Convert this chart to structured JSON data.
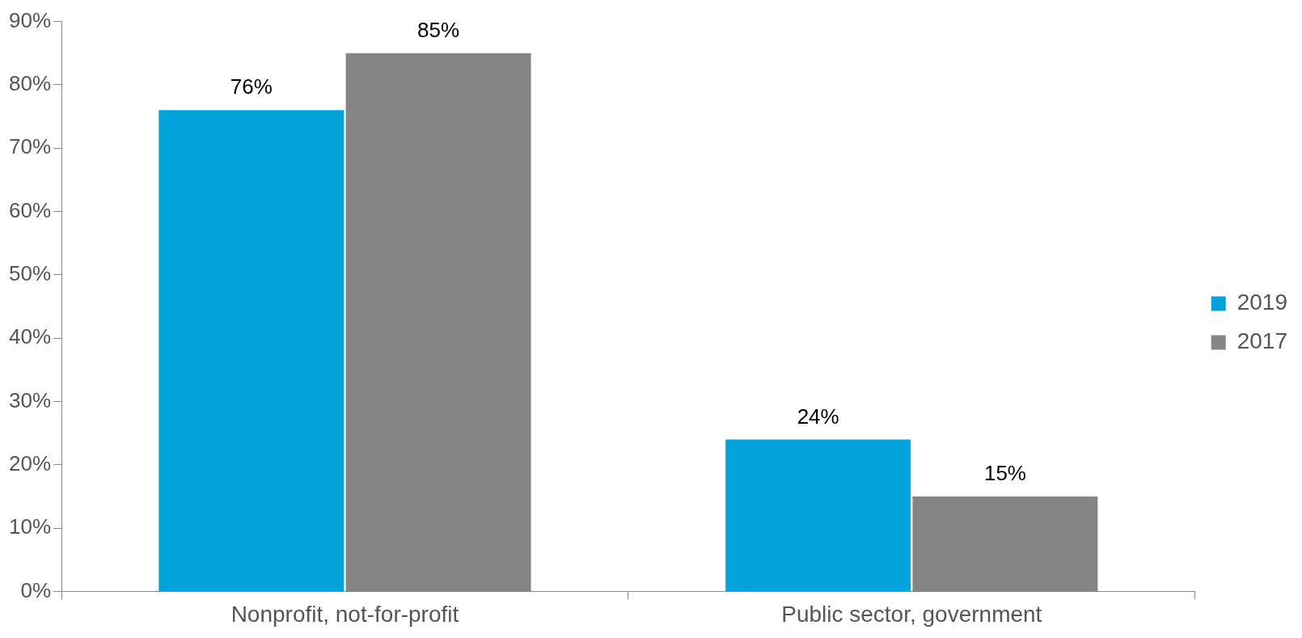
{
  "chart_data": {
    "type": "bar",
    "categories": [
      "Nonprofit, not-for-profit",
      "Public sector, government"
    ],
    "series": [
      {
        "name": "2019",
        "color": "#00a3da",
        "values": [
          76,
          24
        ],
        "value_labels": [
          "76%",
          "24%"
        ]
      },
      {
        "name": "2017",
        "color": "#848584",
        "values": [
          85,
          15
        ],
        "value_labels": [
          "85%",
          "15%"
        ]
      }
    ],
    "ylim": [
      0,
      90
    ],
    "yticks": [
      {
        "value": 0,
        "label": "0%"
      },
      {
        "value": 10,
        "label": "10%"
      },
      {
        "value": 20,
        "label": "20%"
      },
      {
        "value": 30,
        "label": "30%"
      },
      {
        "value": 40,
        "label": "40%"
      },
      {
        "value": 50,
        "label": "50%"
      },
      {
        "value": 60,
        "label": "60%"
      },
      {
        "value": 70,
        "label": "70%"
      },
      {
        "value": 80,
        "label": "80%"
      },
      {
        "value": 90,
        "label": "90%"
      }
    ],
    "grid": false,
    "legend": "right"
  }
}
